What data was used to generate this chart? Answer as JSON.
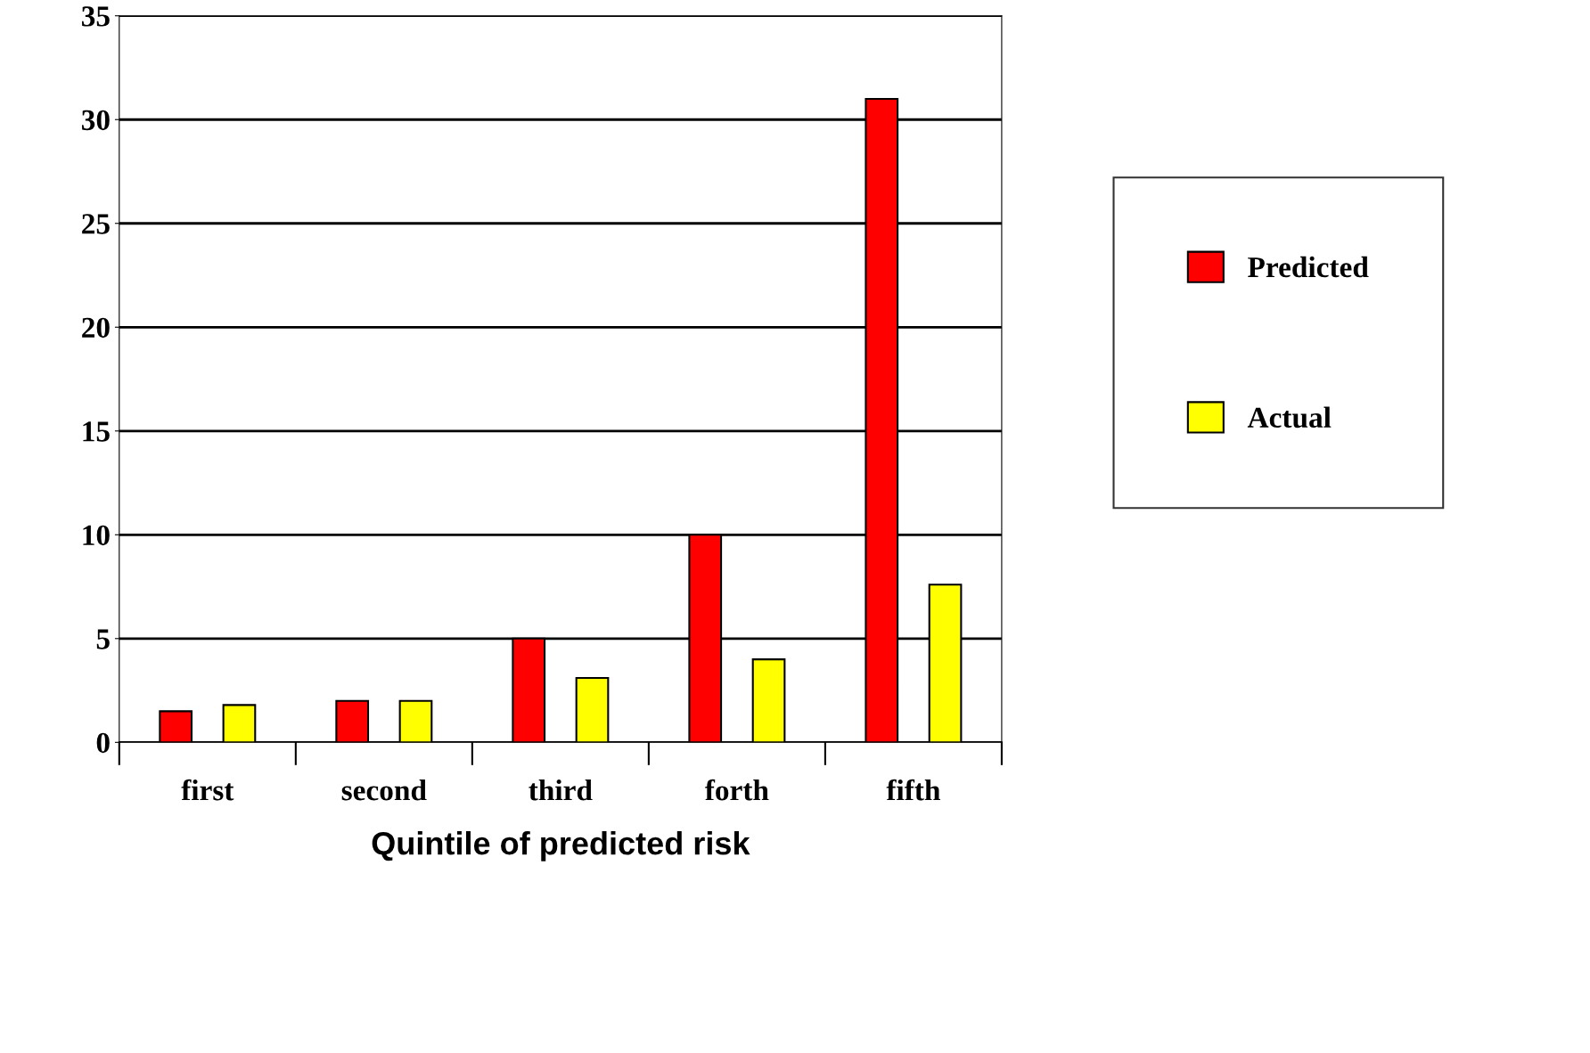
{
  "chart_data": {
    "type": "bar",
    "xlabel": "Quintile of predicted risk",
    "categories": [
      "first",
      "second",
      "third",
      "forth",
      "fifth"
    ],
    "series": [
      {
        "name": "Predicted",
        "color": "#ff0000",
        "values": [
          1.5,
          2.0,
          5.0,
          10.0,
          31.0
        ]
      },
      {
        "name": "Actual",
        "color": "#ffff00",
        "values": [
          1.8,
          2.0,
          3.1,
          4.0,
          7.6
        ]
      }
    ],
    "ylim": [
      0,
      35
    ],
    "yticks": [
      0,
      5,
      10,
      15,
      20,
      25,
      30,
      35
    ],
    "grid": "y",
    "legend": "right"
  }
}
